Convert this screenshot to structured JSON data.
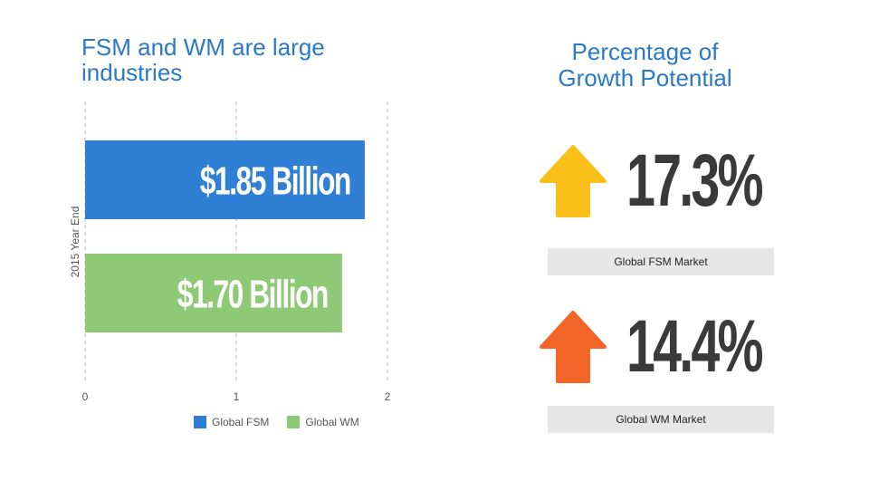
{
  "left_title": {
    "line1": "FSM and WM are large",
    "line2": "industries"
  },
  "right_title": {
    "line1": "Percentage of",
    "line2": "Growth Potential"
  },
  "chart_data": {
    "type": "bar",
    "orientation": "horizontal",
    "categories": [
      "2015 Year End"
    ],
    "series": [
      {
        "name": "Global FSM",
        "values": [
          1.85
        ],
        "label": "$1.85 Billion",
        "color": "#2f7fd4"
      },
      {
        "name": "Global WM",
        "values": [
          1.7
        ],
        "label": "$1.70 Billion",
        "color": "#8ec976"
      }
    ],
    "xlim": [
      0,
      2
    ],
    "xticks": [
      "0",
      "1",
      "2"
    ],
    "ylabel": "2015 Year End",
    "grid": "dashed vertical",
    "legend": "bottom"
  },
  "metrics": [
    {
      "value": "17.3%",
      "label": "Global FSM Market",
      "arrow_color": "#fbbf1a",
      "icon": "up-arrow-icon"
    },
    {
      "value": "14.4%",
      "label": "Global WM Market",
      "arrow_color": "#f26527",
      "icon": "up-arrow-icon"
    }
  ]
}
